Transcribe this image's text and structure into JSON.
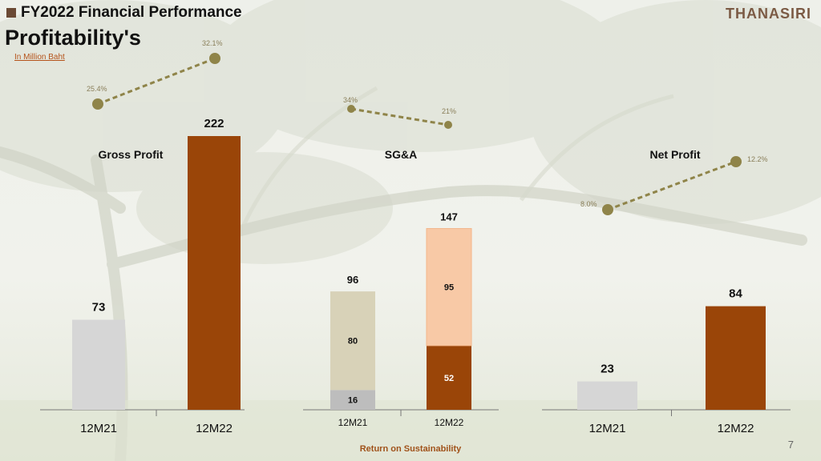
{
  "header": {
    "title": "FY2022 Financial Performance",
    "subtitle": "Profitability's",
    "unit": "In Million Baht",
    "logo": "THANASIRI"
  },
  "footer": {
    "tagline": "Return on Sustainability",
    "page": "7"
  },
  "colors": {
    "bar_grey": "#d6d6d6",
    "bar_brown": "#9a4508",
    "sga_fixed_21": "#d8d2b8",
    "sga_var_21": "#bdbdbd",
    "sga_fixed_22": "#f8c9a6",
    "margin_line": "#8f8449"
  },
  "chart_data": [
    {
      "type": "bar",
      "title": "Gross Profit",
      "categories": [
        "12M21",
        "12M22"
      ],
      "values": [
        73,
        222
      ],
      "margin_labels": [
        "25.4%",
        "32.1%"
      ],
      "margins": [
        25.4,
        32.1
      ]
    },
    {
      "type": "bar",
      "stacked": true,
      "title": "SG&A",
      "categories": [
        "12M21",
        "12M22"
      ],
      "totals": [
        96,
        147
      ],
      "series": [
        {
          "values": [
            16,
            52
          ]
        },
        {
          "values": [
            80,
            95
          ]
        }
      ],
      "margin_labels": [
        "34%",
        "21%"
      ],
      "margins": [
        34,
        21
      ]
    },
    {
      "type": "bar",
      "title": "Net Profit",
      "categories": [
        "12M21",
        "12M22"
      ],
      "values": [
        23,
        84
      ],
      "margin_labels": [
        "8.0%",
        "12.2%"
      ],
      "margins": [
        8.0,
        12.2
      ]
    }
  ]
}
